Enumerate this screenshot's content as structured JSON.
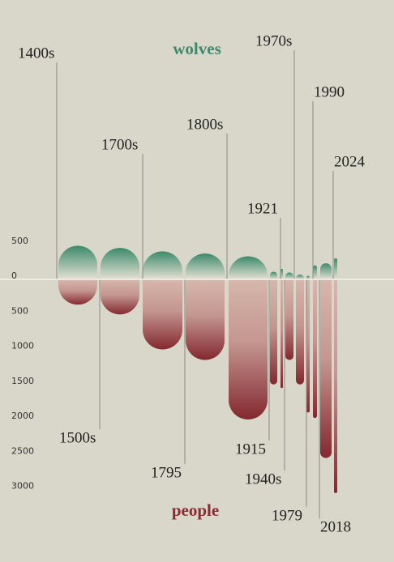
{
  "chart_data": {
    "type": "diverging-bar",
    "series": [
      {
        "name": "wolves",
        "color": "#3d8a6c",
        "direction": "up",
        "values": [
          480,
          450,
          400,
          370,
          330,
          110,
          150,
          100,
          70,
          50,
          200,
          230,
          300
        ]
      },
      {
        "name": "people",
        "color": "#8a2c33",
        "direction": "down",
        "values": [
          360,
          500,
          1000,
          1150,
          2000,
          1500,
          1550,
          1150,
          1500,
          1900,
          1980,
          2550,
          3050
        ]
      }
    ],
    "categories": [
      "1400s",
      "1500s",
      "1700s",
      "1795",
      "1800s",
      "1915",
      "1921",
      "1940s",
      "1970s",
      "1979",
      "1990",
      "2018",
      "2024"
    ],
    "up_ticks": [
      500
    ],
    "down_ticks": [
      0,
      500,
      1000,
      1500,
      2000,
      2500,
      3000
    ]
  }
}
